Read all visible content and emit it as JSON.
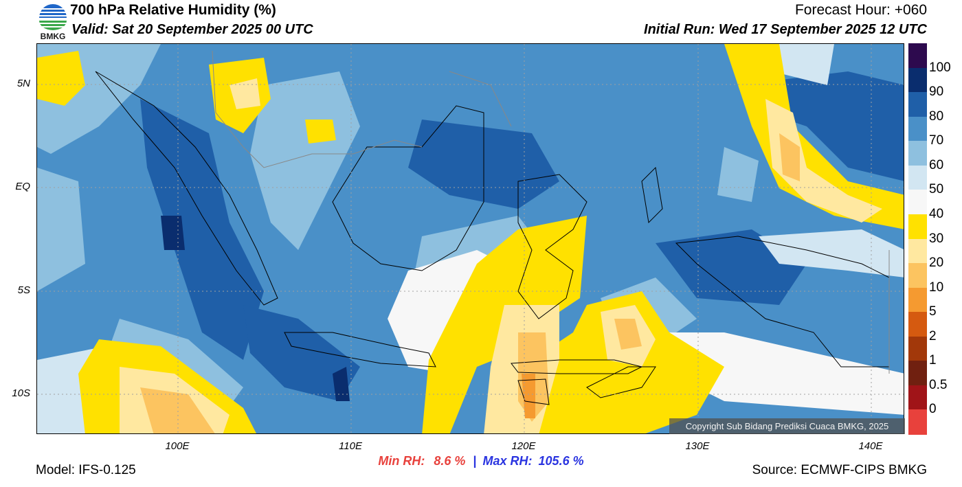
{
  "header": {
    "title": "700 hPa Relative Humidity (%)",
    "valid": "Valid: Sat 20 September 2025 00 UTC",
    "forecast_hour": "Forecast Hour: +060",
    "initial_run": "Initial Run: Wed 17 September 2025 12 UTC",
    "logo_text": "BMKG"
  },
  "axes": {
    "lat_labels": [
      "5N",
      "EQ",
      "5S",
      "10S"
    ],
    "lon_labels": [
      "100E",
      "110E",
      "120E",
      "130E",
      "140E"
    ]
  },
  "colorbar": {
    "labels": [
      "100",
      "90",
      "80",
      "70",
      "60",
      "50",
      "40",
      "30",
      "20",
      "10",
      "5",
      "2",
      "1",
      "0.5",
      "0"
    ],
    "colors": [
      "#2d0a4e",
      "#0a2d6e",
      "#1f5fa8",
      "#4a90c8",
      "#8ec0df",
      "#d2e6f2",
      "#f7f7f7",
      "#ffe100",
      "#ffe8a0",
      "#fcc460",
      "#f59a30",
      "#d55a10",
      "#a2380a",
      "#702010",
      "#a01418",
      "#e8413c"
    ]
  },
  "stats": {
    "min_label": "Min RH:",
    "min_value": "8.6 %",
    "separator": "|",
    "max_label": "Max RH:",
    "max_value": "105.6 %"
  },
  "footer": {
    "model": "Model: IFS-0.125",
    "source": "Source: ECMWF-CIPS BMKG",
    "copyright": "Copyright Sub Bidang Prediksi Cuaca BMKG, 2025"
  }
}
